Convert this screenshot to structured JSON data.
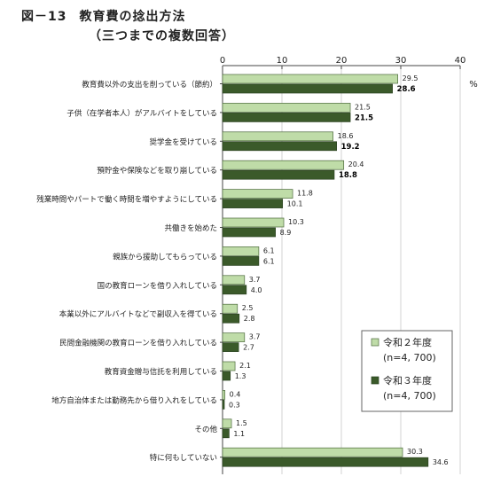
{
  "chart_data": {
    "type": "bar",
    "orientation": "horizontal",
    "title_no": "図－13",
    "title": "教育費の捻出方法",
    "subtitle": "（三つまでの複数回答）",
    "unit": "%",
    "xlim": [
      0,
      40
    ],
    "xticks": [
      "0",
      "10",
      "20",
      "30",
      "40"
    ],
    "grid": true,
    "legend_position": "bottom-right",
    "categories": [
      "教育費以外の支出を削っている（節約）",
      "子供（在学者本人）がアルバイトをしている",
      "奨学金を受けている",
      "預貯金や保険などを取り崩している",
      "残業時間やパートで働く時間を増やすようにしている",
      "共働きを始めた",
      "親族から援助してもらっている",
      "国の教育ローンを借り入れしている",
      "本業以外にアルバイトなどで副収入を得ている",
      "民間金融機関の教育ローンを借り入れしている",
      "教育資金贈与信託を利用している",
      "地方自治体または勤務先から借り入れをしている",
      "その他",
      "特に何もしていない"
    ],
    "series": [
      {
        "name": "令和２年度",
        "n": "(n=4, 700)",
        "color": "#bfdca8",
        "values": [
          29.5,
          21.5,
          18.6,
          20.4,
          11.8,
          10.3,
          6.1,
          3.7,
          2.5,
          3.7,
          2.1,
          0.4,
          1.5,
          30.3
        ],
        "labels": [
          "29.5",
          "21.5",
          "18.6",
          "20.4",
          "11.8",
          "10.3",
          "6.1",
          "3.7",
          "2.5",
          "3.7",
          "2.1",
          "0.4",
          "1.5",
          "30.3"
        ]
      },
      {
        "name": "令和３年度",
        "n": "(n=4, 700)",
        "color": "#3b5a2a",
        "values": [
          28.6,
          21.5,
          19.2,
          18.8,
          10.1,
          8.9,
          6.1,
          4.0,
          2.8,
          2.7,
          1.3,
          0.3,
          1.1,
          34.6
        ],
        "labels": [
          "28.6",
          "21.5",
          "19.2",
          "18.8",
          "10.1",
          "8.9",
          "6.1",
          "4.0",
          "2.8",
          "2.7",
          "1.3",
          "0.3",
          "1.1",
          "34.6"
        ],
        "bold_labels": [
          true,
          true,
          true,
          true,
          false,
          false,
          false,
          false,
          false,
          false,
          false,
          false,
          false,
          false
        ]
      }
    ]
  }
}
